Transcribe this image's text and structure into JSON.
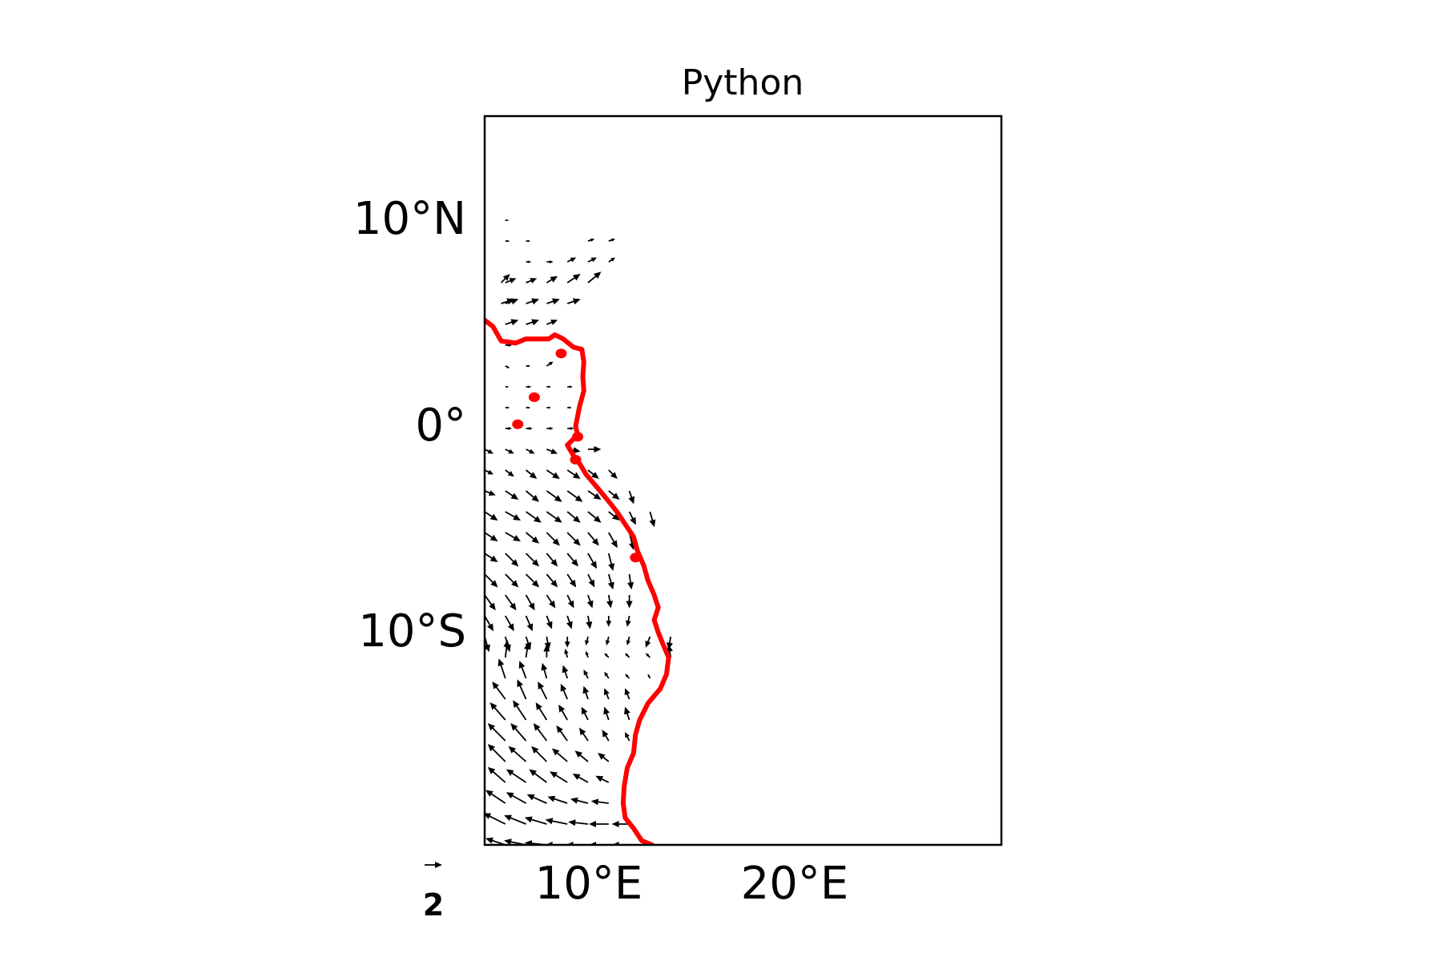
{
  "title": "Python",
  "map": {
    "lon_range": [
      5,
      30
    ],
    "lat_range": [
      -20,
      15
    ],
    "x_ticks": [
      {
        "lon": 10,
        "label": "10°E"
      },
      {
        "lon": 20,
        "label": "20°E"
      }
    ],
    "y_ticks": [
      {
        "lat": 10,
        "label": "10°N"
      },
      {
        "lat": 0,
        "label": "0°"
      },
      {
        "lat": -10,
        "label": "10°S"
      }
    ],
    "coastline_color": "#ff0000",
    "arrow_color": "#000000",
    "frame_color": "#000000"
  },
  "quiver_key": {
    "label": "2",
    "u": 2
  },
  "coastline": [
    [
      5.0,
      5.2
    ],
    [
      5.4,
      4.9
    ],
    [
      5.8,
      4.2
    ],
    [
      6.5,
      4.1
    ],
    [
      7.0,
      4.3
    ],
    [
      7.6,
      4.3
    ],
    [
      8.1,
      4.3
    ],
    [
      8.4,
      4.5
    ],
    [
      8.8,
      4.3
    ],
    [
      9.3,
      3.9
    ],
    [
      9.7,
      3.8
    ],
    [
      9.8,
      3.2
    ],
    [
      9.75,
      2.5
    ],
    [
      9.8,
      1.8
    ],
    [
      9.6,
      1.1
    ],
    [
      9.5,
      0.6
    ],
    [
      9.4,
      0.1
    ],
    [
      9.5,
      -0.3
    ],
    [
      9.2,
      -0.6
    ],
    [
      9.0,
      -0.8
    ],
    [
      9.3,
      -1.3
    ],
    [
      9.6,
      -1.7
    ],
    [
      9.9,
      -2.2
    ],
    [
      10.5,
      -2.9
    ],
    [
      11.0,
      -3.5
    ],
    [
      11.4,
      -4.0
    ],
    [
      11.8,
      -4.6
    ],
    [
      12.2,
      -5.2
    ],
    [
      12.4,
      -5.9
    ],
    [
      12.7,
      -6.6
    ],
    [
      12.9,
      -7.3
    ],
    [
      13.2,
      -8.0
    ],
    [
      13.4,
      -8.6
    ],
    [
      13.2,
      -9.2
    ],
    [
      13.4,
      -9.8
    ],
    [
      13.6,
      -10.3
    ],
    [
      13.9,
      -11.0
    ],
    [
      13.8,
      -11.8
    ],
    [
      13.5,
      -12.5
    ],
    [
      12.9,
      -13.2
    ],
    [
      12.5,
      -14.0
    ],
    [
      12.3,
      -14.7
    ],
    [
      12.2,
      -15.6
    ],
    [
      11.9,
      -16.3
    ],
    [
      11.75,
      -17.2
    ],
    [
      11.7,
      -18.0
    ],
    [
      11.8,
      -18.7
    ],
    [
      12.2,
      -19.2
    ],
    [
      12.6,
      -19.8
    ],
    [
      13.1,
      -20.0
    ]
  ],
  "islands": [
    {
      "lon": 8.7,
      "lat": 3.6
    },
    {
      "lon": 7.4,
      "lat": 1.5
    },
    {
      "lon": 6.6,
      "lat": 0.2
    },
    {
      "lon": 9.5,
      "lat": -0.4
    },
    {
      "lon": 9.4,
      "lat": -1.5
    },
    {
      "lon": 12.3,
      "lat": -6.2
    }
  ],
  "quiver": [
    [
      6.0,
      10.0,
      0.08,
      0.0
    ],
    [
      6.0,
      9.0,
      0.1,
      0.0
    ],
    [
      7.0,
      9.0,
      0.1,
      0.0
    ],
    [
      10.0,
      9.0,
      0.15,
      0.05
    ],
    [
      11.0,
      9.0,
      0.15,
      0.05
    ],
    [
      7.0,
      8.0,
      0.12,
      0.0
    ],
    [
      8.0,
      8.0,
      0.15,
      0.0
    ],
    [
      9.0,
      8.0,
      0.2,
      0.1
    ],
    [
      10.0,
      8.0,
      0.2,
      0.1
    ],
    [
      11.0,
      8.0,
      0.15,
      0.1
    ],
    [
      5.8,
      7.0,
      0.2,
      0.2
    ],
    [
      6.0,
      7.0,
      0.25,
      0.1
    ],
    [
      7.0,
      7.0,
      0.25,
      0.1
    ],
    [
      8.0,
      7.0,
      0.25,
      0.15
    ],
    [
      9.0,
      7.0,
      0.3,
      0.2
    ],
    [
      10.0,
      7.0,
      0.3,
      0.25
    ],
    [
      5.8,
      6.0,
      0.3,
      0.1
    ],
    [
      6.0,
      6.0,
      0.3,
      0.1
    ],
    [
      7.0,
      6.0,
      0.3,
      0.1
    ],
    [
      8.0,
      6.0,
      0.3,
      0.1
    ],
    [
      9.0,
      6.0,
      0.3,
      0.1
    ],
    [
      6.0,
      5.0,
      0.3,
      0.1
    ],
    [
      7.0,
      5.0,
      0.3,
      0.1
    ],
    [
      8.0,
      5.0,
      0.25,
      0.1
    ],
    [
      6.0,
      4.0,
      0.15,
      0.0
    ],
    [
      6.0,
      3.0,
      0.1,
      -0.05
    ],
    [
      7.0,
      3.0,
      0.1,
      0.0
    ],
    [
      8.0,
      3.0,
      0.15,
      0.1
    ],
    [
      6.0,
      2.0,
      0.08,
      0.0
    ],
    [
      7.0,
      2.0,
      0.12,
      0.0
    ],
    [
      8.0,
      2.0,
      0.1,
      0.0
    ],
    [
      9.0,
      2.0,
      0.12,
      0.0
    ],
    [
      6.0,
      1.0,
      0.1,
      0.0
    ],
    [
      7.0,
      1.0,
      0.1,
      0.0
    ],
    [
      8.0,
      1.0,
      0.1,
      0.0
    ],
    [
      9.0,
      1.0,
      0.1,
      0.0
    ],
    [
      6.0,
      0.0,
      0.15,
      0.0
    ],
    [
      7.0,
      0.0,
      0.15,
      0.0
    ],
    [
      8.0,
      0.0,
      0.15,
      0.0
    ],
    [
      9.0,
      0.0,
      0.15,
      0.0
    ],
    [
      5.0,
      -1.0,
      0.2,
      -0.1
    ],
    [
      6.0,
      -1.0,
      0.2,
      -0.1
    ],
    [
      7.0,
      -1.0,
      0.2,
      -0.1
    ],
    [
      8.0,
      -1.0,
      0.25,
      -0.1
    ],
    [
      9.0,
      -1.0,
      0.3,
      -0.05
    ],
    [
      10.0,
      -1.0,
      0.3,
      0.0
    ],
    [
      5.0,
      -2.0,
      0.2,
      -0.1
    ],
    [
      6.0,
      -2.0,
      0.2,
      -0.15
    ],
    [
      7.0,
      -2.0,
      0.25,
      -0.2
    ],
    [
      8.0,
      -2.0,
      0.3,
      -0.2
    ],
    [
      9.0,
      -2.0,
      0.3,
      -0.2
    ],
    [
      10.0,
      -2.0,
      0.25,
      -0.2
    ],
    [
      11.0,
      -2.0,
      0.2,
      -0.2
    ],
    [
      5.0,
      -3.0,
      0.25,
      -0.1
    ],
    [
      6.0,
      -3.0,
      0.3,
      -0.2
    ],
    [
      7.0,
      -3.0,
      0.3,
      -0.25
    ],
    [
      8.0,
      -3.0,
      0.35,
      -0.25
    ],
    [
      9.0,
      -3.0,
      0.35,
      -0.25
    ],
    [
      10.0,
      -3.0,
      0.3,
      -0.2
    ],
    [
      11.0,
      -3.0,
      0.25,
      -0.2
    ],
    [
      12.0,
      -3.0,
      0.1,
      -0.3
    ],
    [
      5.0,
      -4.0,
      0.3,
      -0.2
    ],
    [
      6.0,
      -4.0,
      0.35,
      -0.2
    ],
    [
      7.0,
      -4.0,
      0.35,
      -0.25
    ],
    [
      8.0,
      -4.0,
      0.35,
      -0.25
    ],
    [
      9.0,
      -4.0,
      0.3,
      -0.25
    ],
    [
      10.0,
      -4.0,
      0.3,
      -0.25
    ],
    [
      11.0,
      -4.0,
      0.25,
      -0.2
    ],
    [
      12.0,
      -4.0,
      0.15,
      -0.3
    ],
    [
      13.0,
      -4.0,
      0.1,
      -0.35
    ],
    [
      5.0,
      -5.0,
      0.3,
      -0.2
    ],
    [
      6.0,
      -5.0,
      0.35,
      -0.2
    ],
    [
      7.0,
      -5.0,
      0.3,
      -0.25
    ],
    [
      8.0,
      -5.0,
      0.3,
      -0.3
    ],
    [
      9.0,
      -5.0,
      0.3,
      -0.3
    ],
    [
      10.0,
      -5.0,
      0.25,
      -0.3
    ],
    [
      11.0,
      -5.0,
      0.2,
      -0.35
    ],
    [
      12.0,
      -5.0,
      0.1,
      -0.4
    ],
    [
      5.0,
      -6.0,
      0.3,
      -0.2
    ],
    [
      6.0,
      -6.0,
      0.3,
      -0.3
    ],
    [
      7.0,
      -6.0,
      0.3,
      -0.3
    ],
    [
      8.0,
      -6.0,
      0.25,
      -0.3
    ],
    [
      9.0,
      -6.0,
      0.25,
      -0.3
    ],
    [
      10.0,
      -6.0,
      0.2,
      -0.35
    ],
    [
      11.0,
      -6.0,
      0.1,
      -0.4
    ],
    [
      5.0,
      -7.0,
      0.3,
      -0.3
    ],
    [
      6.0,
      -7.0,
      0.3,
      -0.3
    ],
    [
      7.0,
      -7.0,
      0.3,
      -0.3
    ],
    [
      8.0,
      -7.0,
      0.25,
      -0.3
    ],
    [
      9.0,
      -7.0,
      0.2,
      -0.3
    ],
    [
      10.0,
      -7.0,
      0.15,
      -0.3
    ],
    [
      11.0,
      -7.0,
      0.1,
      -0.35
    ],
    [
      12.0,
      -7.0,
      0.05,
      -0.35
    ],
    [
      5.0,
      -8.0,
      0.25,
      -0.35
    ],
    [
      6.0,
      -8.0,
      0.25,
      -0.35
    ],
    [
      7.0,
      -8.0,
      0.2,
      -0.35
    ],
    [
      8.0,
      -8.0,
      0.2,
      -0.3
    ],
    [
      9.0,
      -8.0,
      0.15,
      -0.3
    ],
    [
      10.0,
      -8.0,
      0.1,
      -0.3
    ],
    [
      11.0,
      -8.0,
      0.05,
      -0.3
    ],
    [
      12.0,
      -8.0,
      0.0,
      -0.3
    ],
    [
      5.0,
      -9.0,
      0.2,
      -0.35
    ],
    [
      6.0,
      -9.0,
      0.2,
      -0.35
    ],
    [
      7.0,
      -9.0,
      0.15,
      -0.35
    ],
    [
      8.0,
      -9.0,
      0.12,
      -0.3
    ],
    [
      9.0,
      -9.0,
      0.1,
      -0.3
    ],
    [
      10.0,
      -9.0,
      0.05,
      -0.3
    ],
    [
      11.0,
      -9.0,
      0.0,
      -0.25
    ],
    [
      12.0,
      -9.0,
      -0.05,
      -0.25
    ],
    [
      5.0,
      -10.0,
      0.1,
      -0.35
    ],
    [
      6.0,
      -10.0,
      0.1,
      -0.35
    ],
    [
      7.0,
      -10.0,
      0.1,
      -0.3
    ],
    [
      8.0,
      -10.0,
      0.05,
      -0.3
    ],
    [
      9.0,
      -10.0,
      0.0,
      -0.25
    ],
    [
      10.0,
      -10.0,
      -0.05,
      -0.2
    ],
    [
      11.0,
      -10.0,
      -0.05,
      -0.2
    ],
    [
      12.0,
      -10.0,
      -0.05,
      -0.2
    ],
    [
      13.0,
      -10.0,
      -0.1,
      -0.25
    ],
    [
      14.0,
      -10.0,
      -0.05,
      -0.3
    ],
    [
      5.0,
      -11.0,
      0.0,
      0.35
    ],
    [
      6.0,
      -11.0,
      0.05,
      0.4
    ],
    [
      7.0,
      -11.0,
      0.05,
      0.35
    ],
    [
      8.0,
      -11.0,
      0.0,
      0.3
    ],
    [
      9.0,
      -11.0,
      -0.05,
      0.2
    ],
    [
      10.0,
      -11.0,
      -0.05,
      0.15
    ],
    [
      11.0,
      -11.0,
      -0.1,
      0.1
    ],
    [
      12.0,
      -11.0,
      -0.1,
      0.1
    ],
    [
      13.0,
      -11.0,
      -0.1,
      0.1
    ],
    [
      14.0,
      -11.0,
      -0.05,
      0.3
    ],
    [
      5.0,
      -12.0,
      -0.2,
      0.4
    ],
    [
      6.0,
      -12.0,
      -0.15,
      0.45
    ],
    [
      7.0,
      -12.0,
      -0.15,
      0.4
    ],
    [
      8.0,
      -12.0,
      -0.1,
      0.35
    ],
    [
      9.0,
      -12.0,
      -0.1,
      0.3
    ],
    [
      10.0,
      -12.0,
      -0.1,
      0.2
    ],
    [
      11.0,
      -12.0,
      -0.1,
      0.15
    ],
    [
      12.0,
      -12.0,
      -0.1,
      0.1
    ],
    [
      13.0,
      -12.0,
      -0.05,
      0.1
    ],
    [
      5.0,
      -13.0,
      -0.3,
      0.35
    ],
    [
      6.0,
      -13.0,
      -0.3,
      0.4
    ],
    [
      7.0,
      -13.0,
      -0.2,
      0.45
    ],
    [
      8.0,
      -13.0,
      -0.2,
      0.4
    ],
    [
      9.0,
      -13.0,
      -0.15,
      0.35
    ],
    [
      10.0,
      -13.0,
      -0.1,
      0.3
    ],
    [
      11.0,
      -13.0,
      -0.1,
      0.25
    ],
    [
      12.0,
      -13.0,
      -0.1,
      0.25
    ],
    [
      5.0,
      -14.0,
      -0.35,
      0.4
    ],
    [
      6.0,
      -14.0,
      -0.35,
      0.4
    ],
    [
      7.0,
      -14.0,
      -0.3,
      0.45
    ],
    [
      8.0,
      -14.0,
      -0.25,
      0.4
    ],
    [
      9.0,
      -14.0,
      -0.2,
      0.35
    ],
    [
      10.0,
      -14.0,
      -0.15,
      0.3
    ],
    [
      11.0,
      -14.0,
      -0.1,
      0.3
    ],
    [
      12.0,
      -14.0,
      -0.1,
      0.3
    ],
    [
      5.0,
      -15.0,
      -0.4,
      0.4
    ],
    [
      6.0,
      -15.0,
      -0.4,
      0.4
    ],
    [
      7.0,
      -15.0,
      -0.35,
      0.4
    ],
    [
      8.0,
      -15.0,
      -0.3,
      0.4
    ],
    [
      9.0,
      -15.0,
      -0.25,
      0.35
    ],
    [
      10.0,
      -15.0,
      -0.2,
      0.3
    ],
    [
      11.0,
      -15.0,
      -0.15,
      0.25
    ],
    [
      12.0,
      -15.0,
      -0.1,
      0.2
    ],
    [
      5.0,
      -16.0,
      -0.4,
      0.4
    ],
    [
      6.0,
      -16.0,
      -0.4,
      0.4
    ],
    [
      7.0,
      -16.0,
      -0.4,
      0.35
    ],
    [
      8.0,
      -16.0,
      -0.35,
      0.35
    ],
    [
      9.0,
      -16.0,
      -0.35,
      0.3
    ],
    [
      10.0,
      -16.0,
      -0.3,
      0.25
    ],
    [
      11.0,
      -16.0,
      -0.25,
      0.2
    ],
    [
      5.0,
      -17.0,
      -0.4,
      0.35
    ],
    [
      6.0,
      -17.0,
      -0.4,
      0.35
    ],
    [
      7.0,
      -17.0,
      -0.45,
      0.3
    ],
    [
      8.0,
      -17.0,
      -0.4,
      0.3
    ],
    [
      9.0,
      -17.0,
      -0.4,
      0.25
    ],
    [
      10.0,
      -17.0,
      -0.35,
      0.2
    ],
    [
      11.0,
      -17.0,
      -0.3,
      0.15
    ],
    [
      5.0,
      -18.0,
      -0.4,
      0.3
    ],
    [
      6.0,
      -18.0,
      -0.45,
      0.3
    ],
    [
      7.0,
      -18.0,
      -0.45,
      0.25
    ],
    [
      8.0,
      -18.0,
      -0.45,
      0.2
    ],
    [
      9.0,
      -18.0,
      -0.45,
      0.15
    ],
    [
      10.0,
      -18.0,
      -0.4,
      0.1
    ],
    [
      11.0,
      -18.0,
      -0.4,
      0.05
    ],
    [
      5.0,
      -19.0,
      -0.45,
      0.3
    ],
    [
      6.0,
      -19.0,
      -0.5,
      0.25
    ],
    [
      7.0,
      -19.0,
      -0.5,
      0.2
    ],
    [
      8.0,
      -19.0,
      -0.5,
      0.15
    ],
    [
      9.0,
      -19.0,
      -0.5,
      0.1
    ],
    [
      10.0,
      -19.0,
      -0.45,
      0.05
    ],
    [
      11.0,
      -19.0,
      -0.45,
      0.0
    ],
    [
      12.0,
      -19.0,
      -0.4,
      0.0
    ],
    [
      5.0,
      -20.0,
      -0.4,
      0.2
    ],
    [
      6.0,
      -20.0,
      -0.45,
      0.15
    ],
    [
      7.0,
      -20.0,
      -0.5,
      0.1
    ],
    [
      8.0,
      -20.0,
      -0.5,
      0.05
    ],
    [
      9.0,
      -20.0,
      -0.5,
      0.0
    ],
    [
      10.0,
      -20.0,
      -0.5,
      0.0
    ],
    [
      11.0,
      -20.0,
      -0.45,
      0.0
    ],
    [
      12.0,
      -20.0,
      -0.4,
      0.0
    ]
  ]
}
